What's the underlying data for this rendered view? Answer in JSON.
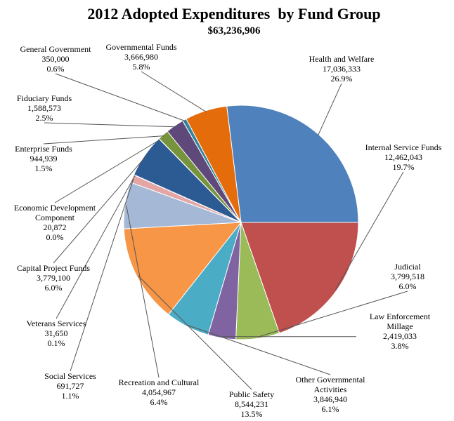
{
  "chart_data": {
    "type": "pie",
    "title": "2012 Adopted Expenditures  by Fund Group",
    "subtitle": "$63,236,906",
    "slices": [
      {
        "name": "Health and Welfare",
        "value": 17036333,
        "value_label": "17,036,333",
        "pct_label": "26.9%",
        "color": "#4F81BD"
      },
      {
        "name": "Internal Service Funds",
        "value": 12462043,
        "value_label": "12,462,043",
        "pct_label": "19.7%",
        "color": "#C0504D"
      },
      {
        "name": "Judicial",
        "value": 3799518,
        "value_label": "3,799,518",
        "pct_label": "6.0%",
        "color": "#9BBB59"
      },
      {
        "name": "Law Enforcement Millage",
        "value": 2419033,
        "value_label": "2,419,033",
        "pct_label": "3.8%",
        "color": "#8064A2"
      },
      {
        "name": "Other Governmental Activities",
        "value": 3846940,
        "value_label": "3,846,940",
        "pct_label": "6.1%",
        "color": "#4BACC6"
      },
      {
        "name": "Public Safety",
        "value": 8544231,
        "value_label": "8,544,231",
        "pct_label": "13.5%",
        "color": "#F79646"
      },
      {
        "name": "Recreation and Cultural",
        "value": 4054967,
        "value_label": "4,054,967",
        "pct_label": "6.4%",
        "color": "#A5B9D7"
      },
      {
        "name": "Social Services",
        "value": 691727,
        "value_label": "691,727",
        "pct_label": "1.1%",
        "color": "#E3A6A5"
      },
      {
        "name": "Veterans Services",
        "value": 31650,
        "value_label": "31,650",
        "pct_label": "0.1%",
        "color": "#C3D69B"
      },
      {
        "name": "Capital Project Funds",
        "value": 3779100,
        "value_label": "3,779,100",
        "pct_label": "6.0%",
        "color": "#2C5B94"
      },
      {
        "name": "Economic Development Component",
        "value": 20872,
        "value_label": "20,872",
        "pct_label": "0.0%",
        "color": "#933634"
      },
      {
        "name": "Enterprise Funds",
        "value": 944939,
        "value_label": "944,939",
        "pct_label": "1.5%",
        "color": "#77933C"
      },
      {
        "name": "Fiduciary Funds",
        "value": 1588573,
        "value_label": "1,588,573",
        "pct_label": "2.5%",
        "color": "#5F497A"
      },
      {
        "name": "General Government",
        "value": 350000,
        "value_label": "350,000",
        "pct_label": "0.6%",
        "color": "#31859C"
      },
      {
        "name": "Governmental Funds",
        "value": 3666980,
        "value_label": "3,666,980",
        "pct_label": "5.8%",
        "color": "#E46C0A"
      }
    ]
  }
}
